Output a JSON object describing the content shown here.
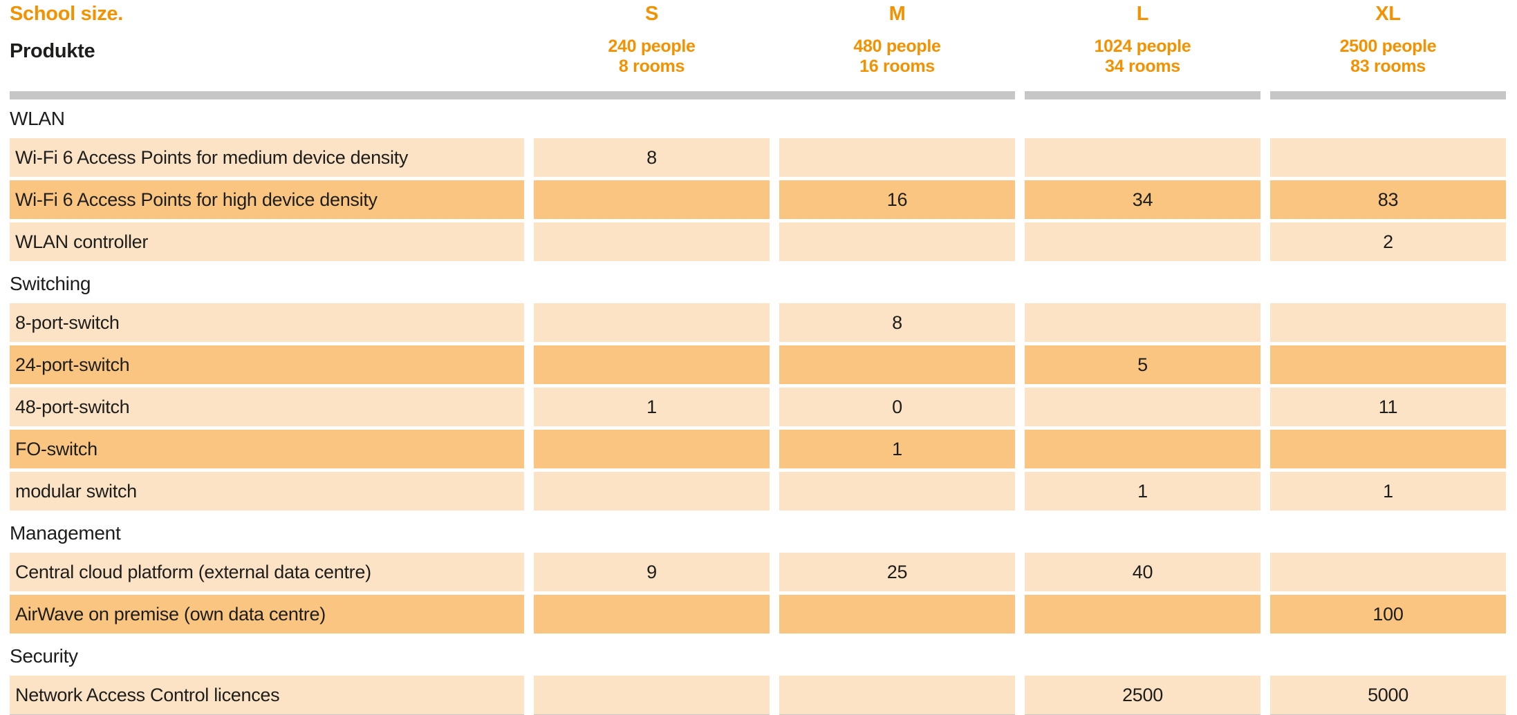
{
  "header": {
    "title": "School size.",
    "products_label": "Produkte"
  },
  "columns": [
    {
      "label": "S",
      "people": "240 people",
      "rooms": "8 rooms"
    },
    {
      "label": "M",
      "people": "480 people",
      "rooms": "16 rooms"
    },
    {
      "label": "L",
      "people": "1024 people",
      "rooms": "34 rooms"
    },
    {
      "label": "XL",
      "people": "2500 people",
      "rooms": "83 rooms"
    }
  ],
  "sections": [
    {
      "name": "WLAN",
      "rows": [
        {
          "label": "Wi-Fi 6 Access Points for medium device density",
          "values": [
            "8",
            "",
            "",
            ""
          ]
        },
        {
          "label": "Wi-Fi 6 Access Points for high device density",
          "values": [
            "",
            "16",
            "34",
            "83"
          ]
        },
        {
          "label": "WLAN controller",
          "values": [
            "",
            "",
            "",
            "2"
          ]
        }
      ]
    },
    {
      "name": "Switching",
      "rows": [
        {
          "label": "8-port-switch",
          "values": [
            "",
            "8",
            "",
            ""
          ]
        },
        {
          "label": "24-port-switch",
          "values": [
            "",
            "",
            "5",
            ""
          ]
        },
        {
          "label": "48-port-switch",
          "values": [
            "1",
            "0",
            "",
            "11"
          ]
        },
        {
          "label": "FO-switch",
          "values": [
            "",
            "1",
            "",
            ""
          ]
        },
        {
          "label": "modular switch",
          "values": [
            "",
            "",
            "1",
            "1"
          ]
        }
      ]
    },
    {
      "name": "Management",
      "rows": [
        {
          "label": "Central cloud platform (external data centre)",
          "values": [
            "9",
            "25",
            "40",
            ""
          ]
        },
        {
          "label": "AirWave on premise (own data centre)",
          "values": [
            "",
            "",
            "",
            "100"
          ]
        }
      ]
    },
    {
      "name": "Security",
      "rows": [
        {
          "label": "Network Access Control licences",
          "values": [
            "",
            "",
            "2500",
            "5000"
          ]
        }
      ]
    }
  ],
  "colors": {
    "orange": "#F39200",
    "row_light": "#FCE3C5",
    "row_dark": "#F9C581",
    "divider_gray": "#C6C6C6",
    "text_black": "#1D1D1B"
  }
}
